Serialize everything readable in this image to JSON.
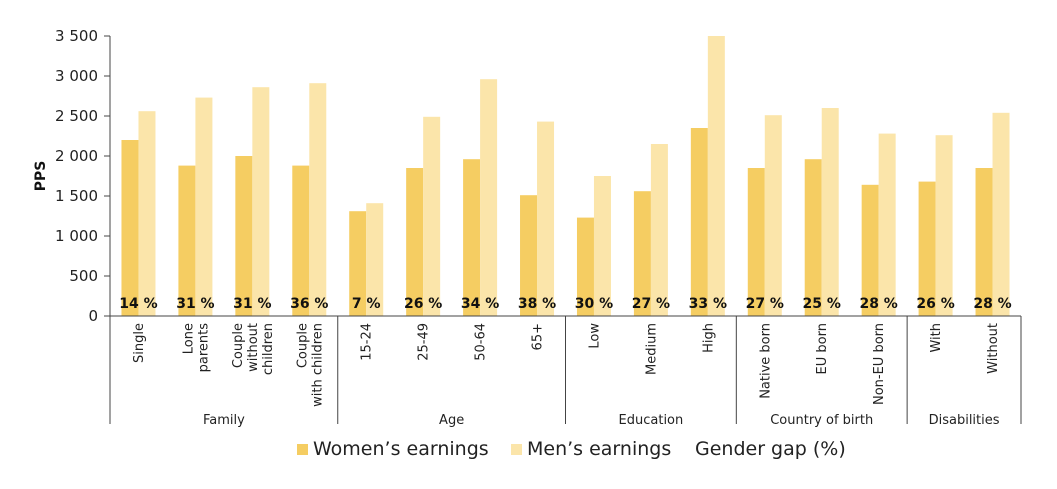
{
  "chart_data": {
    "type": "bar",
    "ylabel": "PPS",
    "ylim": [
      0,
      3500
    ],
    "yticks": [
      0,
      500,
      1000,
      1500,
      2000,
      2500,
      3000,
      3500
    ],
    "ytick_labels": [
      "0",
      "500",
      "1 000",
      "1 500",
      "2 000",
      "2 500",
      "3 000",
      "3 500"
    ],
    "categories": [
      [
        "Single"
      ],
      [
        "Lone",
        "parents"
      ],
      [
        "Couple",
        "without",
        "children"
      ],
      [
        "Couple",
        "with children"
      ],
      [
        "15-24"
      ],
      [
        "25-49"
      ],
      [
        "50-64"
      ],
      [
        "65+"
      ],
      [
        "Low"
      ],
      [
        "Medium"
      ],
      [
        "High"
      ],
      [
        "Native born"
      ],
      [
        "EU born"
      ],
      [
        "Non-EU born"
      ],
      [
        "With"
      ],
      [
        "Without"
      ]
    ],
    "groups": [
      {
        "name": "Family",
        "start": 0,
        "end": 3
      },
      {
        "name": "Age",
        "start": 4,
        "end": 7
      },
      {
        "name": "Education",
        "start": 8,
        "end": 10
      },
      {
        "name": "Country of birth",
        "start": 11,
        "end": 13
      },
      {
        "name": "Disabilities",
        "start": 14,
        "end": 15
      }
    ],
    "series": [
      {
        "name": "Women’s earnings",
        "color": "#f5cd62",
        "values": [
          2200,
          1880,
          2000,
          1880,
          1310,
          1850,
          1960,
          1510,
          1230,
          1560,
          2350,
          1850,
          1960,
          1640,
          1680,
          1850
        ]
      },
      {
        "name": "Men’s earnings",
        "color": "#fbe5aa",
        "values": [
          2560,
          2730,
          2860,
          2910,
          1410,
          2490,
          2960,
          2430,
          1750,
          2150,
          3500,
          2510,
          2600,
          2280,
          2260,
          2540
        ]
      }
    ],
    "gender_gap": {
      "name": "Gender gap (%)",
      "labels": [
        "14 %",
        "31 %",
        "31 %",
        "36 %",
        "7 %",
        "26 %",
        "34 %",
        "38 %",
        "30 %",
        "27 %",
        "33 %",
        "27 %",
        "25 %",
        "28 %",
        "26 %",
        "28 %"
      ]
    },
    "legend_position": "bottom",
    "grid": false
  }
}
